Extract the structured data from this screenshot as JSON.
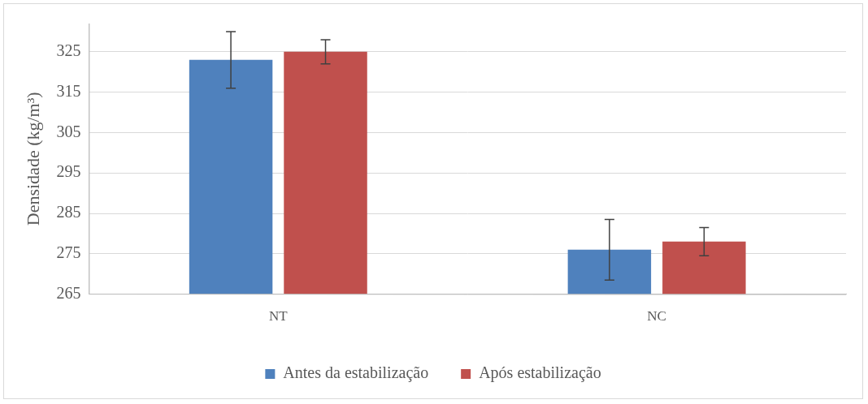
{
  "chart_data": {
    "type": "bar",
    "y_label": "Densidade (kg/m³)",
    "categories": [
      "NT",
      "NC"
    ],
    "series": [
      {
        "name": "Antes da estabilização",
        "color": "#4f81bd",
        "values": [
          323,
          276
        ],
        "errors": [
          7,
          7.5
        ]
      },
      {
        "name": "Após estabilização",
        "color": "#c0504d",
        "values": [
          325,
          278
        ],
        "errors": [
          3,
          3.5
        ]
      }
    ],
    "ylim": [
      265,
      332
    ],
    "yticks": [
      265,
      275,
      285,
      295,
      305,
      315,
      325
    ],
    "grid": true,
    "legend": "bottom"
  }
}
